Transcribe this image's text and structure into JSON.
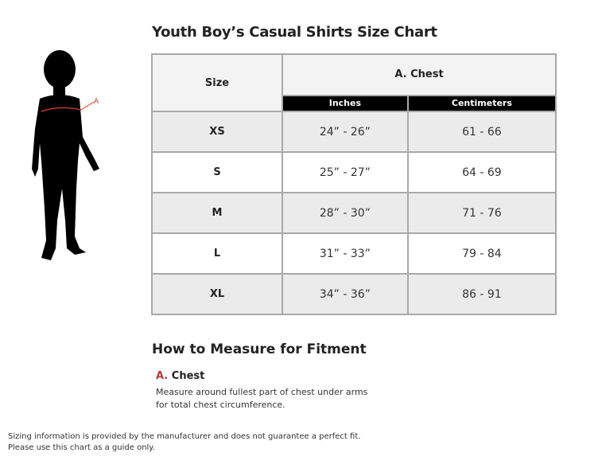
{
  "title": "Youth Boy’s Casual Shirts Size Chart",
  "figure": {
    "marker_label": "A",
    "marker_color": "#c0392b"
  },
  "table": {
    "size_header": "Size",
    "group_header": "A. Chest",
    "sub_headers": [
      "Inches",
      "Centimeters"
    ],
    "rows": [
      {
        "size": "XS",
        "inches": "24” - 26”",
        "cm": "61 - 66"
      },
      {
        "size": "S",
        "inches": "25” - 27”",
        "cm": "64 - 69"
      },
      {
        "size": "M",
        "inches": "28” - 30”",
        "cm": "71 - 76"
      },
      {
        "size": "L",
        "inches": "31” - 33”",
        "cm": "79 - 84"
      },
      {
        "size": "XL",
        "inches": "34” - 36”",
        "cm": "86 - 91"
      }
    ]
  },
  "measure": {
    "heading": "How to Measure for Fitment",
    "items": [
      {
        "letter": "A.",
        "name": "Chest",
        "line1": "Measure around fullest part of chest under arms",
        "line2": "for total chest circumference."
      }
    ]
  },
  "disclaimer": {
    "line1": "Sizing information is provided by the manufacturer and does not guarantee a perfect fit.",
    "line2": "Please use this chart as a guide only."
  },
  "colors": {
    "accent": "#b03a3a",
    "header_bg": "#000000",
    "row_gray": "#ebebeb"
  }
}
